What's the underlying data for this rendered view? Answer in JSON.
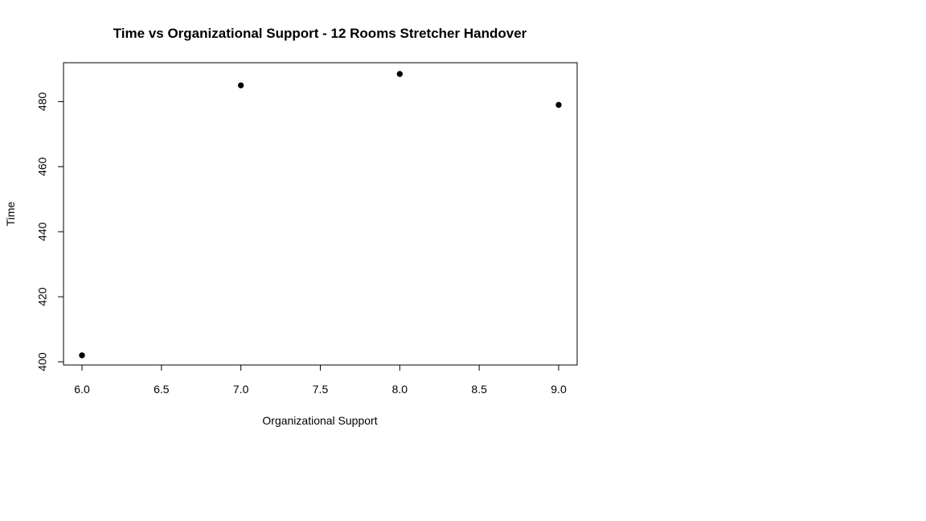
{
  "chart_data": {
    "type": "scatter",
    "title": "Time vs Organizational Support - 12 Rooms Stretcher Handover",
    "xlabel": "Organizational Support",
    "ylabel": "Time",
    "x": [
      6.0,
      7.0,
      8.0,
      9.0
    ],
    "y": [
      402,
      485,
      488.5,
      479
    ],
    "xlim": [
      6.0,
      9.0
    ],
    "ylim": [
      400,
      488.5
    ],
    "xticks": [
      "6.0",
      "6.5",
      "7.0",
      "7.5",
      "8.0",
      "8.5",
      "9.0"
    ],
    "yticks": [
      "400",
      "420",
      "440",
      "460",
      "480"
    ],
    "grid": false,
    "point_color": "#000000"
  }
}
